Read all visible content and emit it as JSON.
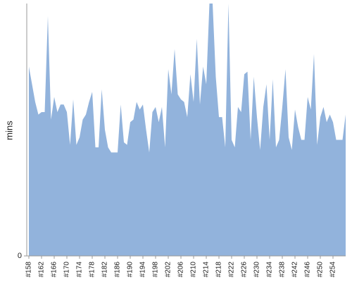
{
  "chart_data": {
    "type": "area",
    "y_label": "mins",
    "color": "#92b3dc",
    "categories": [
      "#158",
      null,
      null,
      null,
      "#162",
      null,
      null,
      null,
      "#166",
      null,
      null,
      null,
      "#170",
      null,
      null,
      null,
      "#174",
      null,
      null,
      null,
      "#178",
      null,
      null,
      null,
      "#182",
      null,
      null,
      null,
      "#186",
      null,
      null,
      null,
      "#190",
      null,
      null,
      null,
      "#194",
      null,
      null,
      null,
      "#198",
      null,
      null,
      null,
      "#202",
      null,
      null,
      null,
      "#206",
      null,
      null,
      null,
      "#210",
      null,
      null,
      null,
      "#214",
      null,
      null,
      null,
      "#218",
      null,
      null,
      null,
      "#222",
      null,
      null,
      null,
      "#226",
      null,
      null,
      null,
      "#230",
      null,
      null,
      null,
      "#234",
      null,
      null,
      null,
      "#238",
      null,
      null,
      null,
      "#242",
      null,
      null,
      null,
      "#246",
      null,
      null,
      null,
      "#250",
      null,
      null,
      null,
      "#254",
      null,
      null,
      null,
      null
    ],
    "values": [
      75,
      68,
      61,
      56,
      57,
      57,
      95,
      54,
      63,
      57,
      60,
      60,
      57,
      44,
      62,
      44,
      47,
      54,
      56,
      61,
      65,
      43,
      43,
      66,
      50,
      43,
      41,
      41,
      41,
      60,
      45,
      44,
      53,
      54,
      61,
      58,
      60,
      50,
      41,
      57,
      59,
      53,
      59,
      43,
      74,
      64,
      82,
      64,
      62,
      61,
      55,
      72,
      61,
      86,
      60,
      75,
      68,
      100,
      100,
      71,
      55,
      55,
      43,
      100,
      46,
      43,
      59,
      57,
      72,
      73,
      46,
      71,
      55,
      42,
      59,
      68,
      46,
      70,
      43,
      46,
      59,
      74,
      47,
      42,
      58,
      51,
      46,
      46,
      63,
      58,
      80,
      44,
      55,
      59,
      53,
      56,
      53,
      46,
      46,
      46,
      56
    ],
    "ylim": [
      0,
      100
    ],
    "yticks": [
      0
    ]
  }
}
